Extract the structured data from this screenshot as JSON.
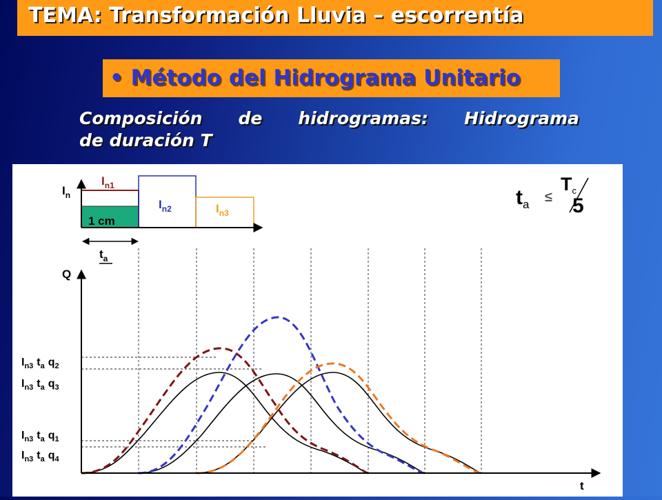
{
  "header": {
    "title": "TEMA: Transformación Lluvia – escorrentía",
    "subtitle": "• Método del Hidrograma Unitario"
  },
  "heading": {
    "line1": "Composición de hidrogramas: Hidrograma",
    "line2": "de duración T"
  },
  "hyetograph": {
    "axis_label": "I",
    "axis_label_sub": "n",
    "block1_label": "I",
    "block1_sub": "n1",
    "block1_fill_label": "1 cm",
    "block2_label": "I",
    "block2_sub": "n2",
    "block3_label": "I",
    "block3_sub": "n3",
    "duration_label": "t",
    "duration_sub": "a",
    "colors": {
      "block1_bar": "#8b1a1a",
      "block1_fill": "#1aaa7c",
      "block2": "#2533a6",
      "block3": "#f0a020"
    }
  },
  "formula": {
    "lhs": "t",
    "lhs_sub": "a",
    "relation": "≤",
    "numerator": "T",
    "numerator_sub": "c",
    "denominator": "5"
  },
  "hydrograph": {
    "y_axis": "Q",
    "x_axis": "t",
    "level_labels": [
      {
        "i": "I",
        "i_sub": "n3",
        "t": "t",
        "t_sub": "a",
        "q": "q",
        "q_sub": "2"
      },
      {
        "i": "I",
        "i_sub": "n3",
        "t": "t",
        "t_sub": "a",
        "q": "q",
        "q_sub": "3"
      },
      {
        "i": "I",
        "i_sub": "n3",
        "t": "t",
        "t_sub": "a",
        "q": "q",
        "q_sub": "1"
      },
      {
        "i": "I",
        "i_sub": "n3",
        "t": "t",
        "t_sub": "a",
        "q": "q",
        "q_sub": "4"
      }
    ],
    "curve_colors": {
      "unit": "#000000",
      "block1": "#7b1515",
      "block2": "#3535c8",
      "block3": "#f07820"
    }
  }
}
